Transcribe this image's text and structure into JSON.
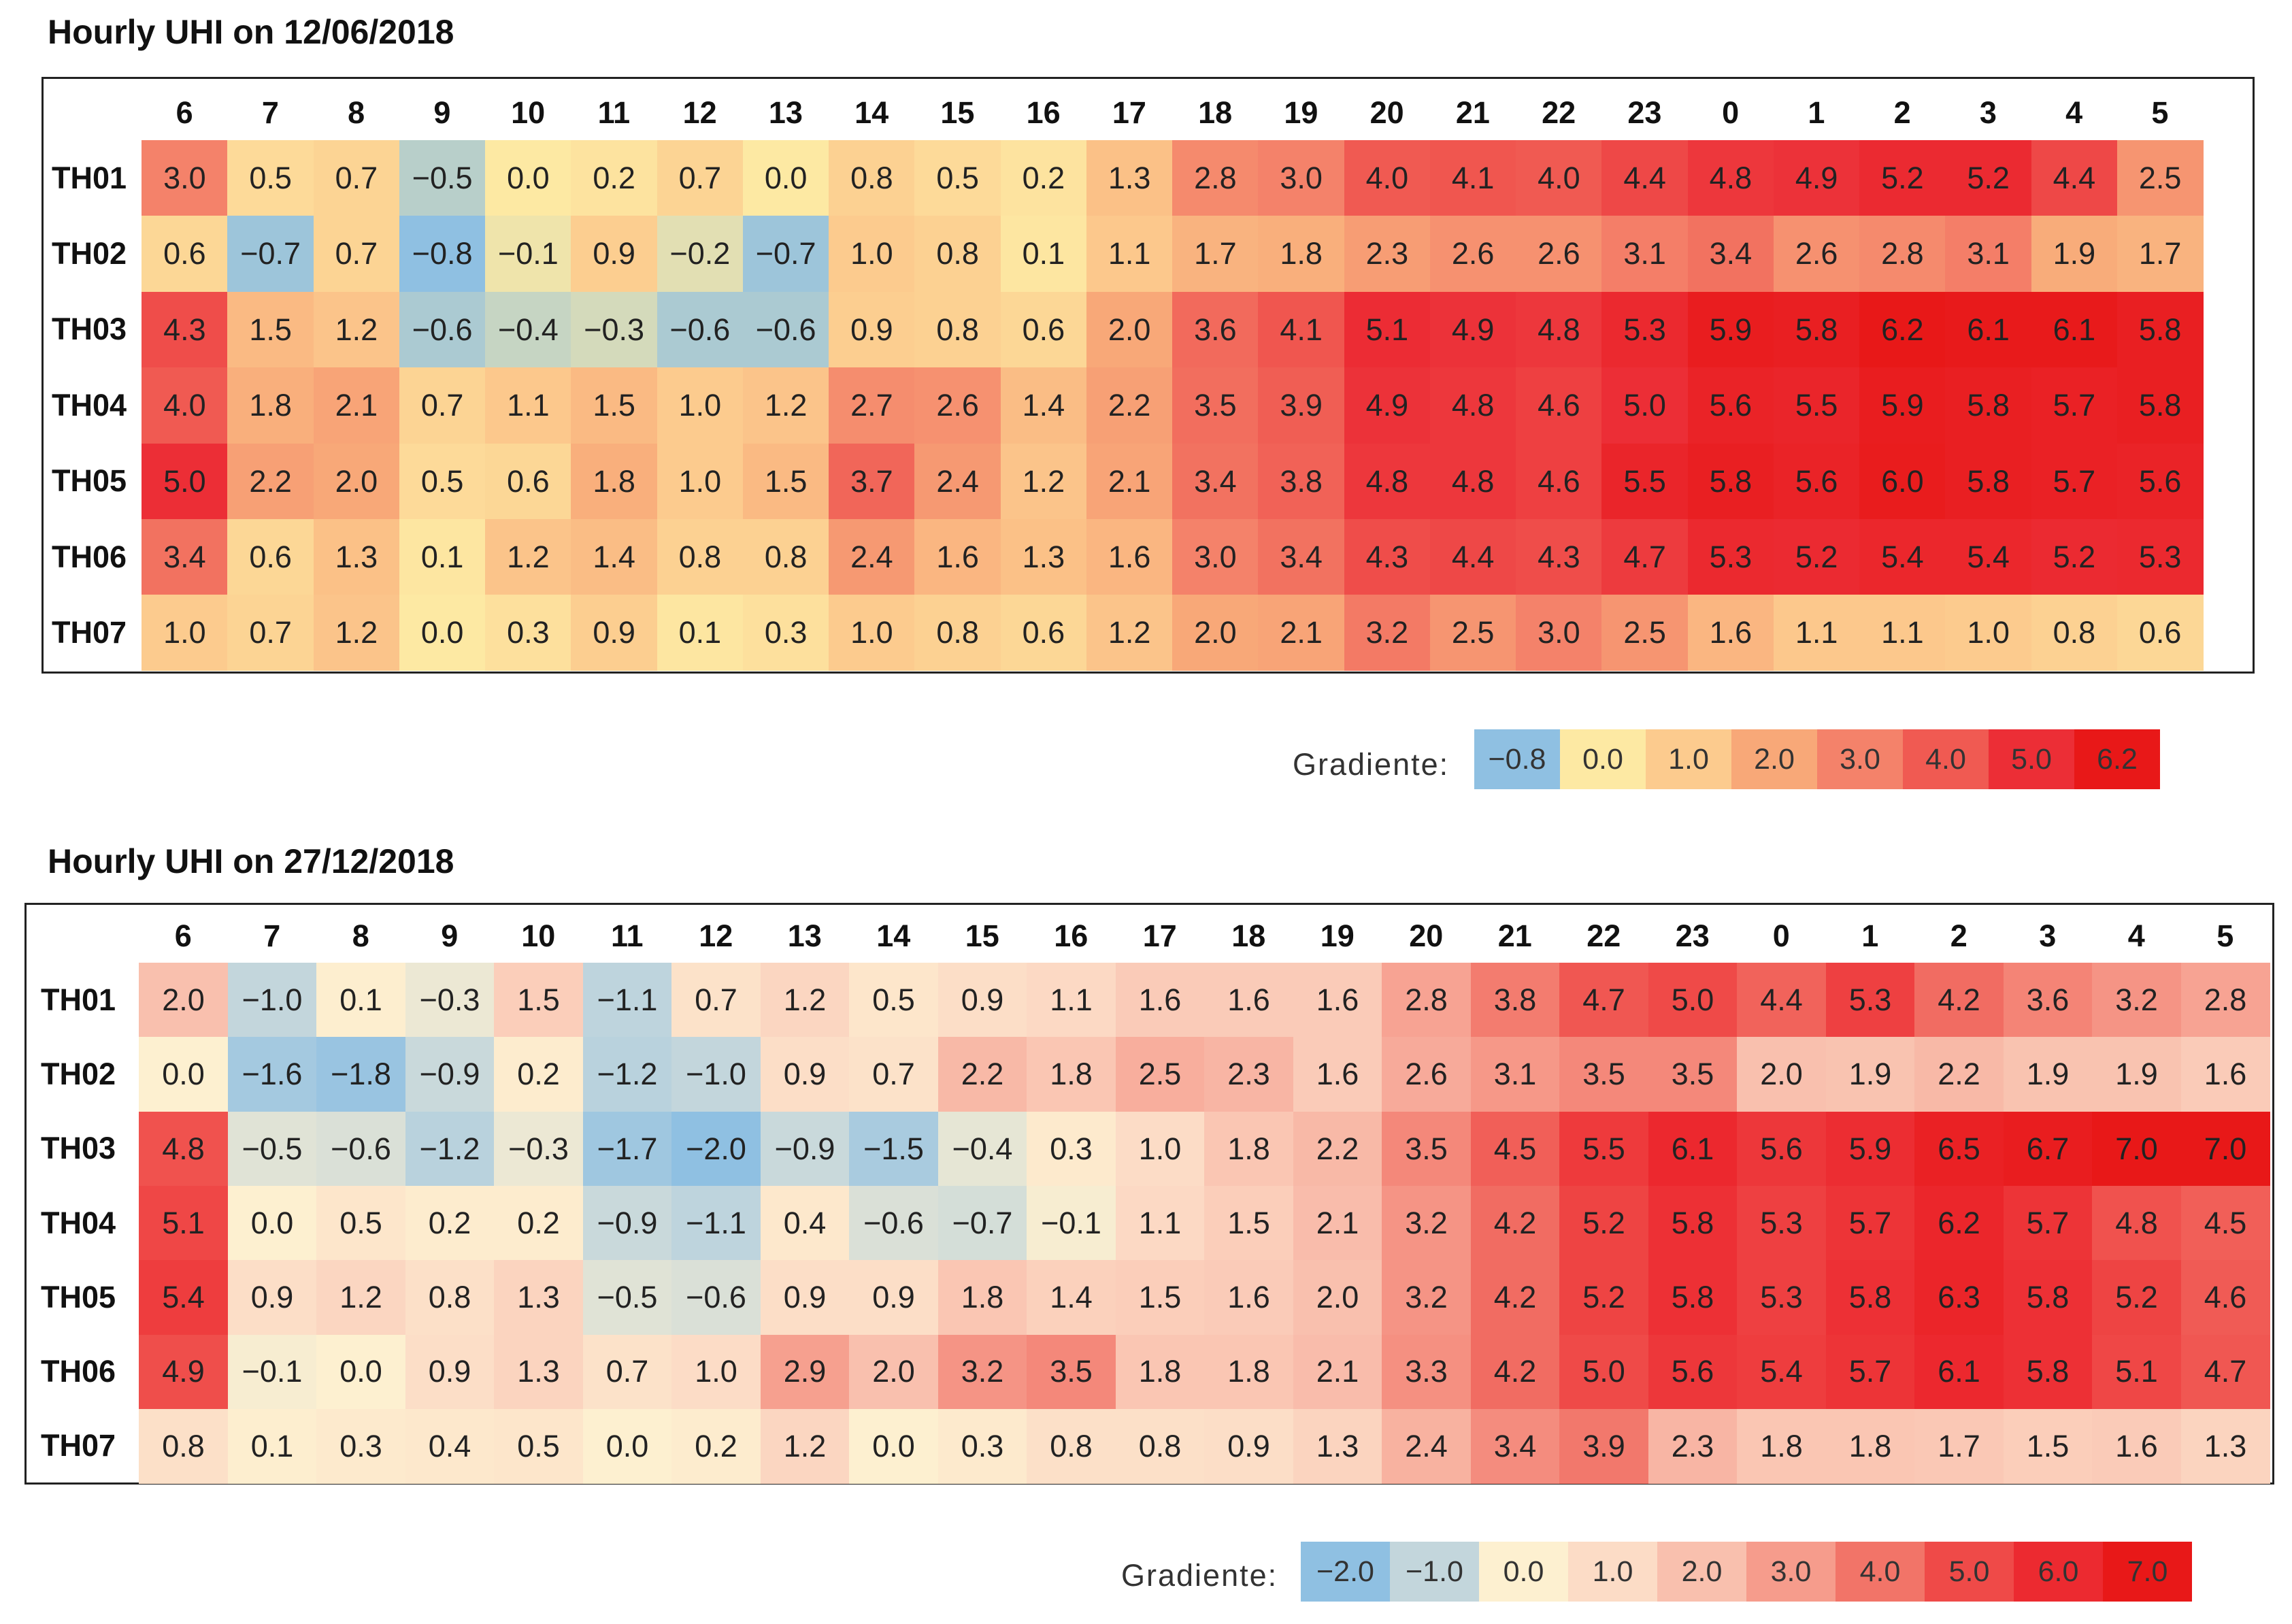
{
  "chart_data": [
    {
      "type": "heatmap",
      "title": "Hourly UHI on 12/06/2018",
      "x_labels": [
        "6",
        "7",
        "8",
        "9",
        "10",
        "11",
        "12",
        "13",
        "14",
        "15",
        "16",
        "17",
        "18",
        "19",
        "20",
        "21",
        "22",
        "23",
        "0",
        "1",
        "2",
        "3",
        "4",
        "5"
      ],
      "y_labels": [
        "TH01",
        "TH02",
        "TH03",
        "TH04",
        "TH05",
        "TH06",
        "TH07"
      ],
      "values": [
        [
          3.0,
          0.5,
          0.7,
          -0.5,
          0.0,
          0.2,
          0.7,
          0.0,
          0.8,
          0.5,
          0.2,
          1.3,
          2.8,
          3.0,
          4.0,
          4.1,
          4.0,
          4.4,
          4.8,
          4.9,
          5.2,
          5.2,
          4.4,
          2.5
        ],
        [
          0.6,
          -0.7,
          0.7,
          -0.8,
          -0.1,
          0.9,
          -0.2,
          -0.7,
          1.0,
          0.8,
          0.1,
          1.1,
          1.7,
          1.8,
          2.3,
          2.6,
          2.6,
          3.1,
          3.4,
          2.6,
          2.8,
          3.1,
          1.9,
          1.7
        ],
        [
          4.3,
          1.5,
          1.2,
          -0.6,
          -0.4,
          -0.3,
          -0.6,
          -0.6,
          0.9,
          0.8,
          0.6,
          2.0,
          3.6,
          4.1,
          5.1,
          4.9,
          4.8,
          5.3,
          5.9,
          5.8,
          6.2,
          6.1,
          6.1,
          5.8
        ],
        [
          4.0,
          1.8,
          2.1,
          0.7,
          1.1,
          1.5,
          1.0,
          1.2,
          2.7,
          2.6,
          1.4,
          2.2,
          3.5,
          3.9,
          4.9,
          4.8,
          4.6,
          5.0,
          5.6,
          5.5,
          5.9,
          5.8,
          5.7,
          5.8
        ],
        [
          5.0,
          2.2,
          2.0,
          0.5,
          0.6,
          1.8,
          1.0,
          1.5,
          3.7,
          2.4,
          1.2,
          2.1,
          3.4,
          3.8,
          4.8,
          4.8,
          4.6,
          5.5,
          5.8,
          5.6,
          6.0,
          5.8,
          5.7,
          5.6
        ],
        [
          3.4,
          0.6,
          1.3,
          0.1,
          1.2,
          1.4,
          0.8,
          0.8,
          2.4,
          1.6,
          1.3,
          1.6,
          3.0,
          3.4,
          4.3,
          4.4,
          4.3,
          4.7,
          5.3,
          5.2,
          5.4,
          5.4,
          5.2,
          5.3
        ],
        [
          1.0,
          0.7,
          1.2,
          0.0,
          0.3,
          0.9,
          0.1,
          0.3,
          1.0,
          0.8,
          0.6,
          1.2,
          2.0,
          2.1,
          3.2,
          2.5,
          3.0,
          2.5,
          1.6,
          1.1,
          1.1,
          1.0,
          0.8,
          0.6
        ]
      ],
      "legend": {
        "label": "Gradiente:",
        "stops": [
          "-0.8",
          "0.0",
          "1.0",
          "2.0",
          "3.0",
          "4.0",
          "5.0",
          "6.2"
        ],
        "colors": [
          "#8fc0e2",
          "#fde9a3",
          "#fccb8e",
          "#f8a878",
          "#f4826a",
          "#f05a52",
          "#ec2e36",
          "#e81818"
        ]
      }
    },
    {
      "type": "heatmap",
      "title": "Hourly UHI on 27/12/2018",
      "x_labels": [
        "6",
        "7",
        "8",
        "9",
        "10",
        "11",
        "12",
        "13",
        "14",
        "15",
        "16",
        "17",
        "18",
        "19",
        "20",
        "21",
        "22",
        "23",
        "0",
        "1",
        "2",
        "3",
        "4",
        "5"
      ],
      "y_labels": [
        "TH01",
        "TH02",
        "TH03",
        "TH04",
        "TH05",
        "TH06",
        "TH07"
      ],
      "values": [
        [
          2.0,
          -1.0,
          0.1,
          -0.3,
          1.5,
          -1.1,
          0.7,
          1.2,
          0.5,
          0.9,
          1.1,
          1.6,
          1.6,
          1.6,
          2.8,
          3.8,
          4.7,
          5.0,
          4.4,
          5.3,
          4.2,
          3.6,
          3.2,
          2.8
        ],
        [
          0.0,
          -1.6,
          -1.8,
          -0.9,
          0.2,
          -1.2,
          -1.0,
          0.9,
          0.7,
          2.2,
          1.8,
          2.5,
          2.3,
          1.6,
          2.6,
          3.1,
          3.5,
          3.5,
          2.0,
          1.9,
          2.2,
          1.9,
          1.9,
          1.6
        ],
        [
          4.8,
          -0.5,
          -0.6,
          -1.2,
          -0.3,
          -1.7,
          -2.0,
          -0.9,
          -1.5,
          -0.4,
          0.3,
          1.0,
          1.8,
          2.2,
          3.5,
          4.5,
          5.5,
          6.1,
          5.6,
          5.9,
          6.5,
          6.7,
          7.0,
          7.0
        ],
        [
          5.1,
          0.0,
          0.5,
          0.2,
          0.2,
          -0.9,
          -1.1,
          0.4,
          -0.6,
          -0.7,
          -0.1,
          1.1,
          1.5,
          2.1,
          3.2,
          4.2,
          5.2,
          5.8,
          5.3,
          5.7,
          6.2,
          5.7,
          4.8,
          4.5
        ],
        [
          5.4,
          0.9,
          1.2,
          0.8,
          1.3,
          -0.5,
          -0.6,
          0.9,
          0.9,
          1.8,
          1.4,
          1.5,
          1.6,
          2.0,
          3.2,
          4.2,
          5.2,
          5.8,
          5.3,
          5.8,
          6.3,
          5.8,
          5.2,
          4.6
        ],
        [
          4.9,
          -0.1,
          0.0,
          0.9,
          1.3,
          0.7,
          1.0,
          2.9,
          2.0,
          3.2,
          3.5,
          1.8,
          1.8,
          2.1,
          3.3,
          4.2,
          5.0,
          5.6,
          5.4,
          5.7,
          6.1,
          5.8,
          5.1,
          4.7
        ],
        [
          0.8,
          0.1,
          0.3,
          0.4,
          0.5,
          0.0,
          0.2,
          1.2,
          0.0,
          0.3,
          0.8,
          0.8,
          0.9,
          1.3,
          2.4,
          3.4,
          3.9,
          2.3,
          1.8,
          1.8,
          1.7,
          1.5,
          1.6,
          1.3
        ]
      ],
      "legend": {
        "label": "Gradiente:",
        "stops": [
          "-2.0",
          "-1.0",
          "0.0",
          "1.0",
          "2.0",
          "3.0",
          "4.0",
          "5.0",
          "6.0",
          "7.0"
        ],
        "colors": [
          "#8fc0e2",
          "#c3d6dc",
          "#fdf0d0",
          "#fcdcc6",
          "#f9c0ae",
          "#f69c8c",
          "#f27468",
          "#ef4a48",
          "#ec2a30",
          "#e81818"
        ]
      }
    }
  ]
}
